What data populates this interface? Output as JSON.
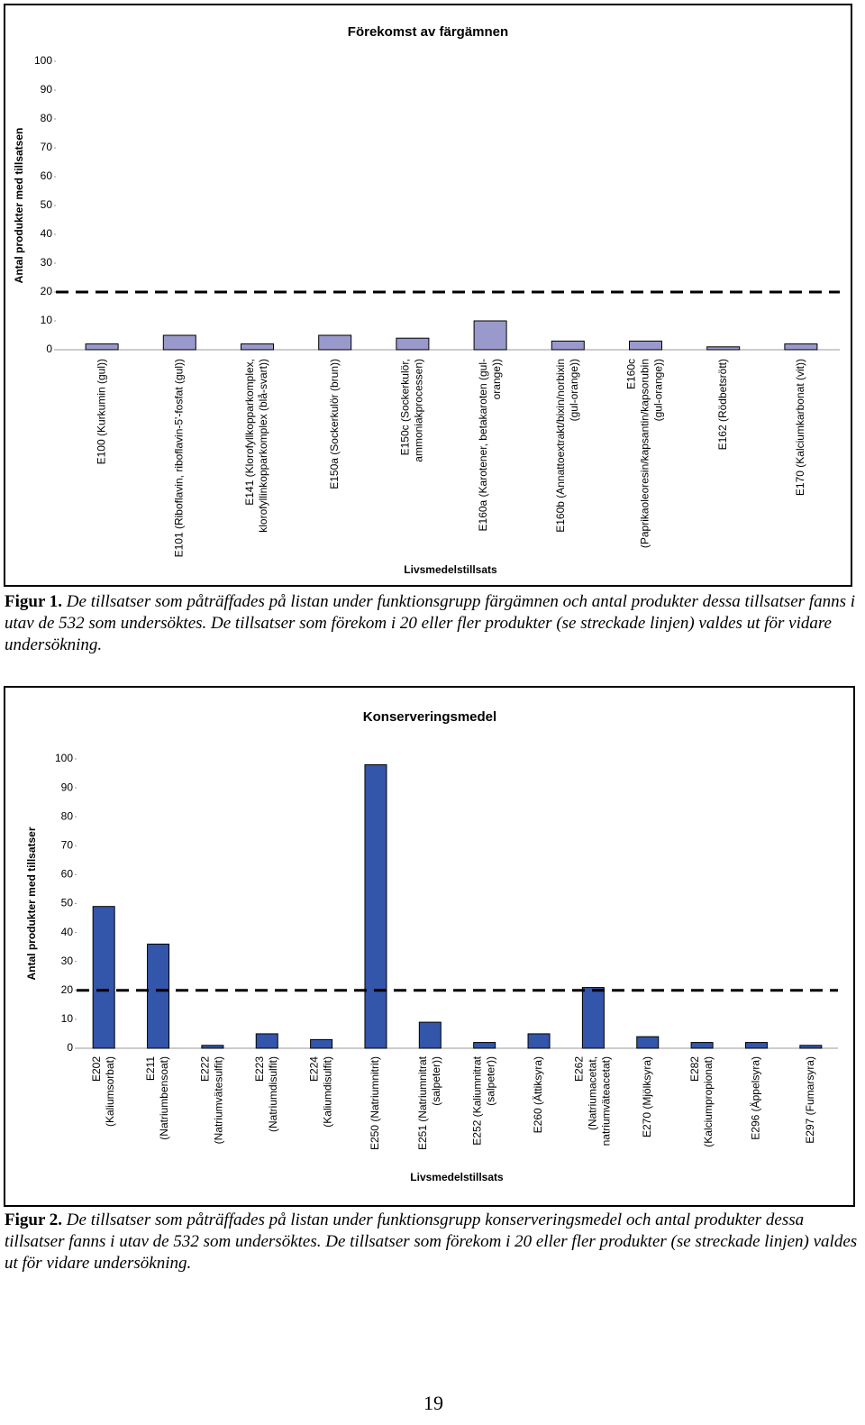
{
  "chart_data": [
    {
      "type": "bar",
      "title": "Förekomst av färgämnen",
      "x_label": "Livsmedelstillsats",
      "y_label": "Antal produkter med tillsatsen",
      "categories": [
        [
          "E100 (Kurkumin (gul))"
        ],
        [
          "E101 (Riboflavin, riboflavin-5'-fosfat (gul))"
        ],
        [
          "E141 (Klorofyllkopparkomplex,",
          "klorofyllinkopparkomplex (blå-svart))"
        ],
        [
          "E150a (Sockerkulör (brun))"
        ],
        [
          "E150c (Sockerkulör,",
          "ammoniakprocessen)"
        ],
        [
          "E160a (Karotener, betakaroten (gul-",
          "orange))"
        ],
        [
          "E160b (Annattoextrakt/bixin/norbixin",
          "(gul-orange))"
        ],
        [
          "E160c",
          "(Paprikaoleoresin/kapsantin/kapsorubin",
          "(gul-orange))"
        ],
        [
          "E162 (Rödbetsrött)"
        ],
        [
          "E170 (Kalciumkarbonat (vit))"
        ]
      ],
      "values": [
        2,
        5,
        2,
        5,
        4,
        10,
        3,
        3,
        1,
        2
      ],
      "color": "#9999cc",
      "threshold": 20,
      "ylim": [
        0,
        100
      ],
      "yticks": [
        0,
        10,
        20,
        30,
        40,
        50,
        60,
        70,
        80,
        90,
        100
      ]
    },
    {
      "type": "bar",
      "title": "Konserveringsmedel",
      "x_label": "Livsmedelstillsats",
      "y_label": "Antal produkter med tillsatser",
      "categories": [
        [
          "E202",
          "(Kaliumsorbat)"
        ],
        [
          "E211",
          "(Natriumbensoat)"
        ],
        [
          "E222",
          "(Natriumvätesulfit)"
        ],
        [
          "E223",
          "(Natriumdisulfit)"
        ],
        [
          "E224",
          "(Kaliumdisulfit)"
        ],
        [
          "E250 (Natriumnitrit)"
        ],
        [
          "E251 (Natriumnitrat",
          "(salpeter))"
        ],
        [
          "E252 (Kaliumnitrat",
          "(salpeter))"
        ],
        [
          "E260 (Ättiksyra)"
        ],
        [
          "E262",
          "(Natriumacetat,",
          "natriumväteacetat)"
        ],
        [
          "E270 (Mjölksyra)"
        ],
        [
          "E282",
          "(Kalciumpropionat)"
        ],
        [
          "E296 (Äppelsyra)"
        ],
        [
          "E297 (Fumarsyra)"
        ]
      ],
      "values": [
        49,
        36,
        1,
        5,
        3,
        98,
        9,
        2,
        5,
        21,
        4,
        2,
        2,
        1
      ],
      "color": "#3355aa",
      "threshold": 20,
      "ylim": [
        0,
        100
      ],
      "yticks": [
        0,
        10,
        20,
        30,
        40,
        50,
        60,
        70,
        80,
        90,
        100
      ]
    }
  ],
  "captions": [
    {
      "label": "Figur 1.",
      "text": "De tillsatser som påträffades på listan under funktionsgrupp färgämnen och antal produkter dessa tillsatser fanns i utav de 532 som undersöktes. De tillsatser som förekom i 20 eller fler produkter (se streckade linjen) valdes ut för vidare undersökning."
    },
    {
      "label": "Figur 2.",
      "text": "De tillsatser som påträffades på listan under funktionsgrupp konserveringsmedel och antal produkter dessa tillsatser fanns i utav de 532 som undersöktes. De tillsatser som förekom i 20 eller fler produkter (se streckade linjen) valdes ut för vidare undersökning."
    }
  ],
  "page_number": "19"
}
